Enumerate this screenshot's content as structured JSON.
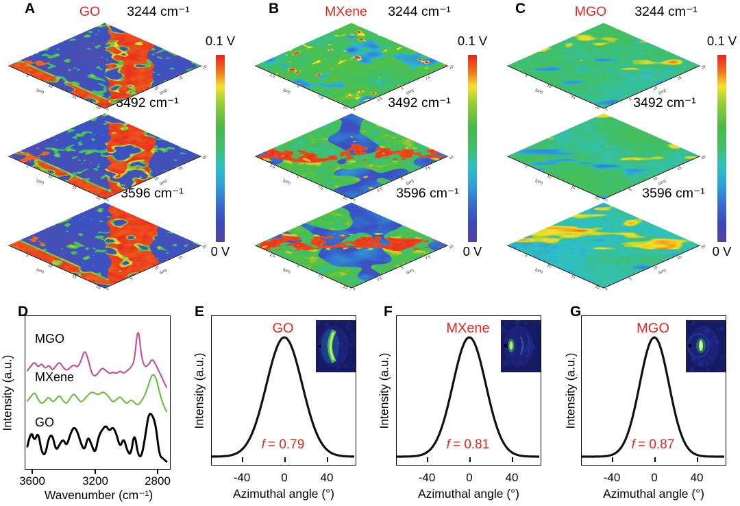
{
  "colors": {
    "accent_red": "#e8251d",
    "background": "#ffffff",
    "axis_black": "#000000",
    "colorbar_stops": [
      [
        "#e8251d",
        0
      ],
      [
        "#f0741d",
        9
      ],
      [
        "#f2e22e",
        17
      ],
      [
        "#9ed035",
        25
      ],
      [
        "#4db847",
        38
      ],
      [
        "#3fbf6a",
        50
      ],
      [
        "#2fc0c4",
        60
      ],
      [
        "#2f9fd8",
        70
      ],
      [
        "#3b62cc",
        82
      ],
      [
        "#3a49b8",
        90
      ],
      [
        "#54419f",
        100
      ]
    ]
  },
  "top_panels": [
    {
      "letter": "A",
      "material": "GO",
      "row_labels": [
        "3244 cm⁻¹",
        "3492 cm⁻¹",
        "3596 cm⁻¹"
      ],
      "colorbar": {
        "top": "0.1 V",
        "bottom": "0 V"
      },
      "axis_ticks_left": [
        "5",
        "10",
        "15",
        "20"
      ],
      "axis_ticks_right": [
        "0",
        "5",
        "10",
        "15",
        "20"
      ],
      "axis_unit": "(μm)",
      "texture": "purple-red-band"
    },
    {
      "letter": "B",
      "material": "MXene",
      "row_labels": [
        "3244 cm⁻¹",
        "3492 cm⁻¹",
        "3596 cm⁻¹"
      ],
      "colorbar": {
        "top": "0.1 V",
        "bottom": "0 V"
      },
      "axis_ticks_left": [
        "2.5",
        "5",
        "7.5",
        "10"
      ],
      "axis_ticks_right": [
        "0",
        "2.5",
        "5",
        "7.5",
        "10"
      ],
      "axis_unit": "(μm)",
      "texture": "green-blue-spots"
    },
    {
      "letter": "C",
      "material": "MGO",
      "row_labels": [
        "3244 cm⁻¹",
        "3492 cm⁻¹",
        "3596 cm⁻¹"
      ],
      "colorbar": {
        "top": "0.1 V",
        "bottom": "0 V"
      },
      "axis_ticks_left": [
        "5",
        "10",
        "15",
        "20"
      ],
      "axis_ticks_right": [
        "0",
        "5",
        "10",
        "15",
        "20"
      ],
      "axis_unit": "(μm)",
      "texture": "teal-streaks"
    }
  ],
  "chart_data": [
    {
      "id": "D",
      "panel_letter": "D",
      "type": "line",
      "xlabel": "Wavenumber (cm⁻¹)",
      "ylabel": "Intensity (a.u.)",
      "x_ticks": [
        "3600",
        "3200",
        "2800"
      ],
      "x_range": [
        3650,
        2720
      ],
      "x_axis_direction": "decreasing",
      "grid": false,
      "series": [
        {
          "name": "MGO",
          "color": "#c4509e",
          "y_norm": [
            0.64,
            0.67,
            0.7,
            0.66,
            0.69,
            0.65,
            0.68,
            0.64,
            0.67,
            0.7,
            0.66,
            0.64,
            0.66,
            0.68,
            0.66,
            0.7,
            0.78,
            0.72,
            0.62,
            0.6,
            0.63,
            0.66,
            0.64,
            0.62,
            0.63,
            0.62,
            0.64,
            0.62,
            0.64,
            0.66,
            0.7,
            0.95,
            0.72,
            0.66,
            0.68,
            0.72,
            0.68,
            0.63,
            0.58,
            0.53
          ]
        },
        {
          "name": "MXene",
          "color": "#6abf45",
          "y_norm": [
            0.44,
            0.47,
            0.5,
            0.45,
            0.42,
            0.44,
            0.47,
            0.43,
            0.45,
            0.48,
            0.44,
            0.42,
            0.46,
            0.49,
            0.46,
            0.43,
            0.45,
            0.48,
            0.5,
            0.49,
            0.48,
            0.5,
            0.49,
            0.46,
            0.43,
            0.45,
            0.47,
            0.44,
            0.42,
            0.45,
            0.43,
            0.41,
            0.44,
            0.48,
            0.55,
            0.62,
            0.6,
            0.5,
            0.42,
            0.37
          ]
        },
        {
          "name": "GO",
          "color": "#000000",
          "y_norm": [
            0.14,
            0.25,
            0.17,
            0.24,
            0.1,
            0.08,
            0.2,
            0.22,
            0.11,
            0.15,
            0.19,
            0.14,
            0.22,
            0.27,
            0.24,
            0.16,
            0.11,
            0.21,
            0.15,
            0.09,
            0.21,
            0.25,
            0.28,
            0.24,
            0.27,
            0.22,
            0.13,
            0.2,
            0.11,
            0.08,
            0.24,
            0.08,
            0.07,
            0.2,
            0.36,
            0.35,
            0.28,
            0.08,
            0.06,
            0.04
          ]
        }
      ]
    },
    {
      "id": "E",
      "panel_letter": "E",
      "type": "line",
      "curve": "gaussian",
      "title": "GO",
      "f_symbol": "f",
      "f_value": "= 0.79",
      "center_deg": 0,
      "sigma_deg": 16.8,
      "x_range": [
        -68,
        66
      ],
      "x_ticks": [
        "-40",
        "0",
        "40"
      ],
      "xlabel": "Azimuthal angle (°)",
      "ylabel": "Intensity (a.u.)",
      "inset_style": "crescent"
    },
    {
      "id": "F",
      "panel_letter": "F",
      "type": "line",
      "curve": "gaussian",
      "title": "MXene",
      "f_symbol": "f",
      "f_value": "= 0.81",
      "center_deg": 0,
      "sigma_deg": 15.5,
      "x_range": [
        -68,
        66
      ],
      "x_ticks": [
        "-40",
        "0",
        "40"
      ],
      "xlabel": "Azimuthal angle (°)",
      "ylabel": "Intensity (a.u.)",
      "inset_style": "dot-arcs"
    },
    {
      "id": "G",
      "panel_letter": "G",
      "type": "line",
      "curve": "gaussian",
      "title": "MGO",
      "f_symbol": "f",
      "f_value": "= 0.87",
      "center_deg": 0,
      "sigma_deg": 13.8,
      "x_range": [
        -68,
        66
      ],
      "x_ticks": [
        "-40",
        "0",
        "40"
      ],
      "xlabel": "Azimuthal angle (°)",
      "ylabel": "Intensity (a.u.)",
      "inset_style": "dot-streak"
    }
  ]
}
